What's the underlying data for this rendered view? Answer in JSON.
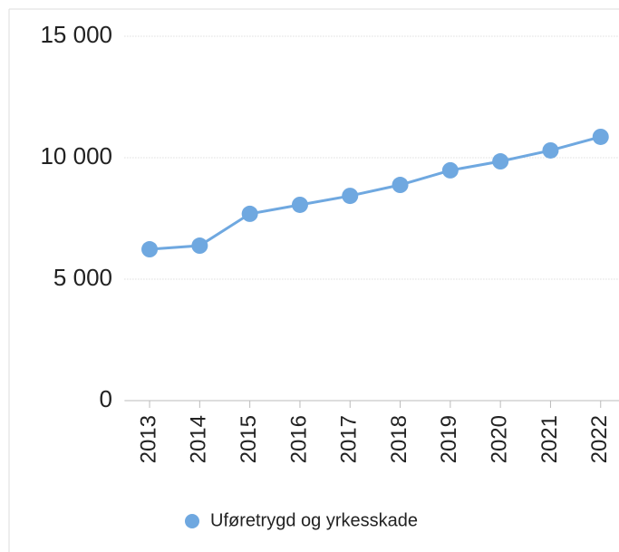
{
  "chart_data": {
    "type": "line",
    "categories": [
      "2013",
      "2014",
      "2015",
      "2016",
      "2017",
      "2018",
      "2019",
      "2020",
      "2021",
      "2022"
    ],
    "series": [
      {
        "name": "Uføretrygd og yrkesskade",
        "color": "#6fa8e0",
        "values": [
          6230,
          6380,
          7690,
          8060,
          8430,
          8880,
          9480,
          9850,
          10300,
          10860
        ]
      }
    ],
    "ylim": [
      0,
      15000
    ],
    "yticks": [
      0,
      {
        "value": 5000,
        "label": "5 000"
      },
      {
        "value": 10000,
        "label": "10 000"
      },
      {
        "value": 15000,
        "label": "15 000"
      }
    ],
    "grid": true,
    "legend": "bottom"
  }
}
